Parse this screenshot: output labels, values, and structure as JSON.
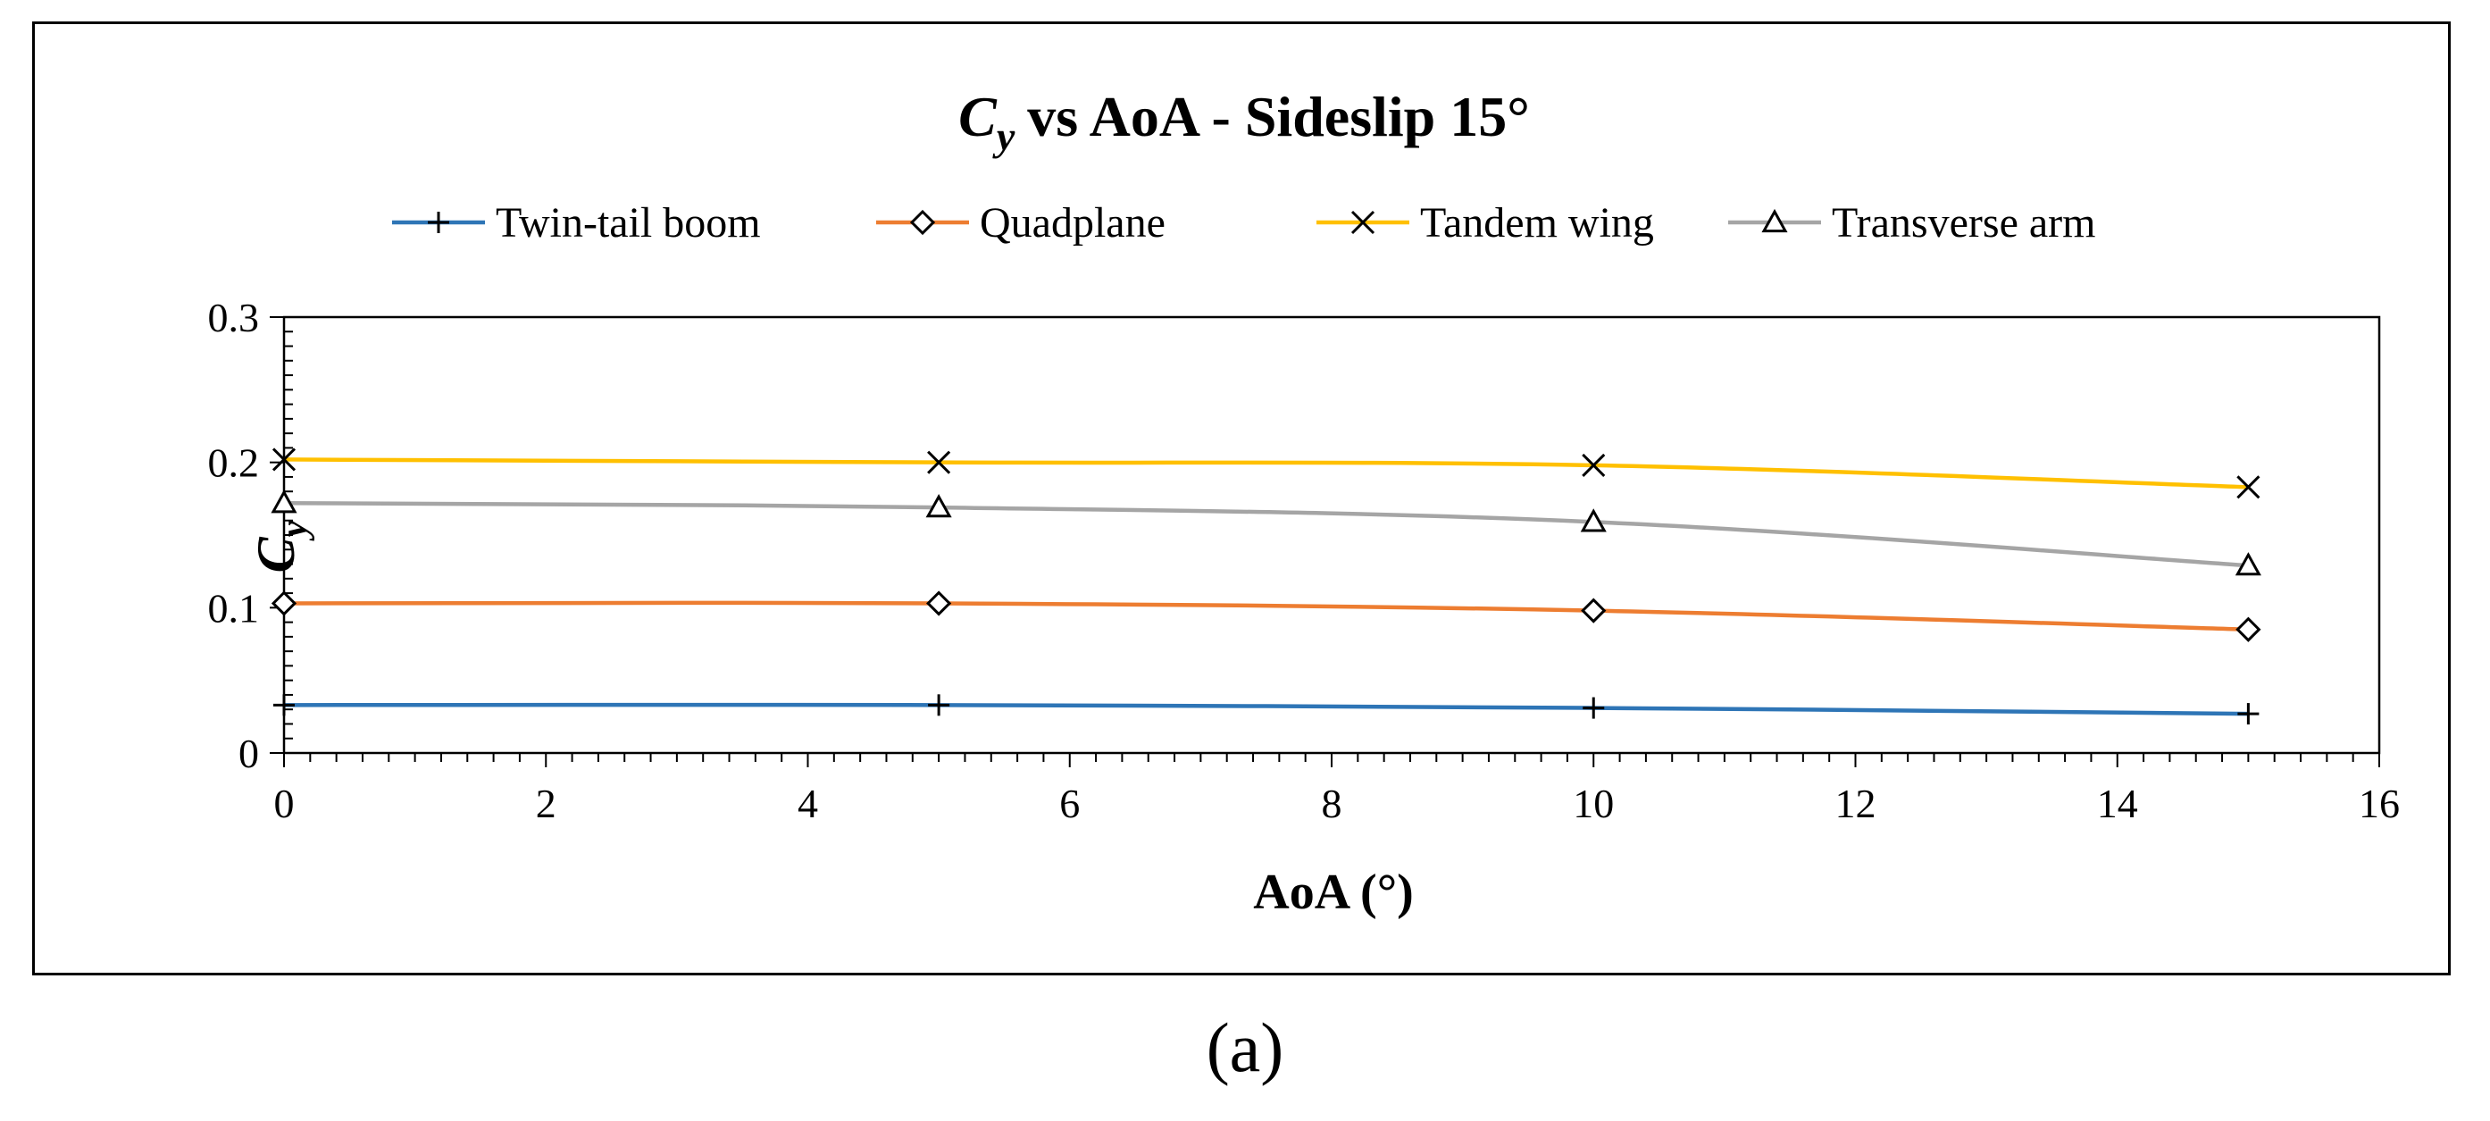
{
  "caption": "(a)",
  "colors": {
    "frame": "#000000",
    "axis": "#000000",
    "twin_tail_boom": "#2E75B6",
    "quadplane": "#ED7D31",
    "tandem_wing": "#FFC000",
    "transverse_arm": "#A5A5A5"
  },
  "chart_data": {
    "type": "line",
    "title": "vs AoA - Sideslip 15°",
    "title_symbol": {
      "main": "C",
      "subscript": "y"
    },
    "xlabel": "AoA (°)",
    "ylabel": {
      "main": "C",
      "subscript": "y"
    },
    "xlim": [
      0,
      16
    ],
    "ylim": [
      0,
      0.3
    ],
    "xticks": [
      0,
      2,
      4,
      6,
      8,
      10,
      12,
      14,
      16
    ],
    "yticks": [
      0,
      0.1,
      0.2,
      0.3
    ],
    "ytick_labels": [
      "0",
      "0.1",
      "0.2",
      "0.3"
    ],
    "grid": false,
    "legend_position": "top",
    "x": [
      0,
      5,
      10,
      15
    ],
    "series": [
      {
        "name": "Twin-tail boom",
        "marker": "plus",
        "color_key": "twin_tail_boom",
        "values": [
          0.033,
          0.033,
          0.031,
          0.027
        ]
      },
      {
        "name": "Quadplane",
        "marker": "diamond",
        "color_key": "quadplane",
        "values": [
          0.103,
          0.103,
          0.098,
          0.085
        ]
      },
      {
        "name": "Tandem wing",
        "marker": "x",
        "color_key": "tandem_wing",
        "values": [
          0.202,
          0.2,
          0.198,
          0.183
        ]
      },
      {
        "name": "Transverse arm",
        "marker": "triangle",
        "color_key": "transverse_arm",
        "values": [
          0.172,
          0.169,
          0.159,
          0.129
        ]
      }
    ]
  }
}
